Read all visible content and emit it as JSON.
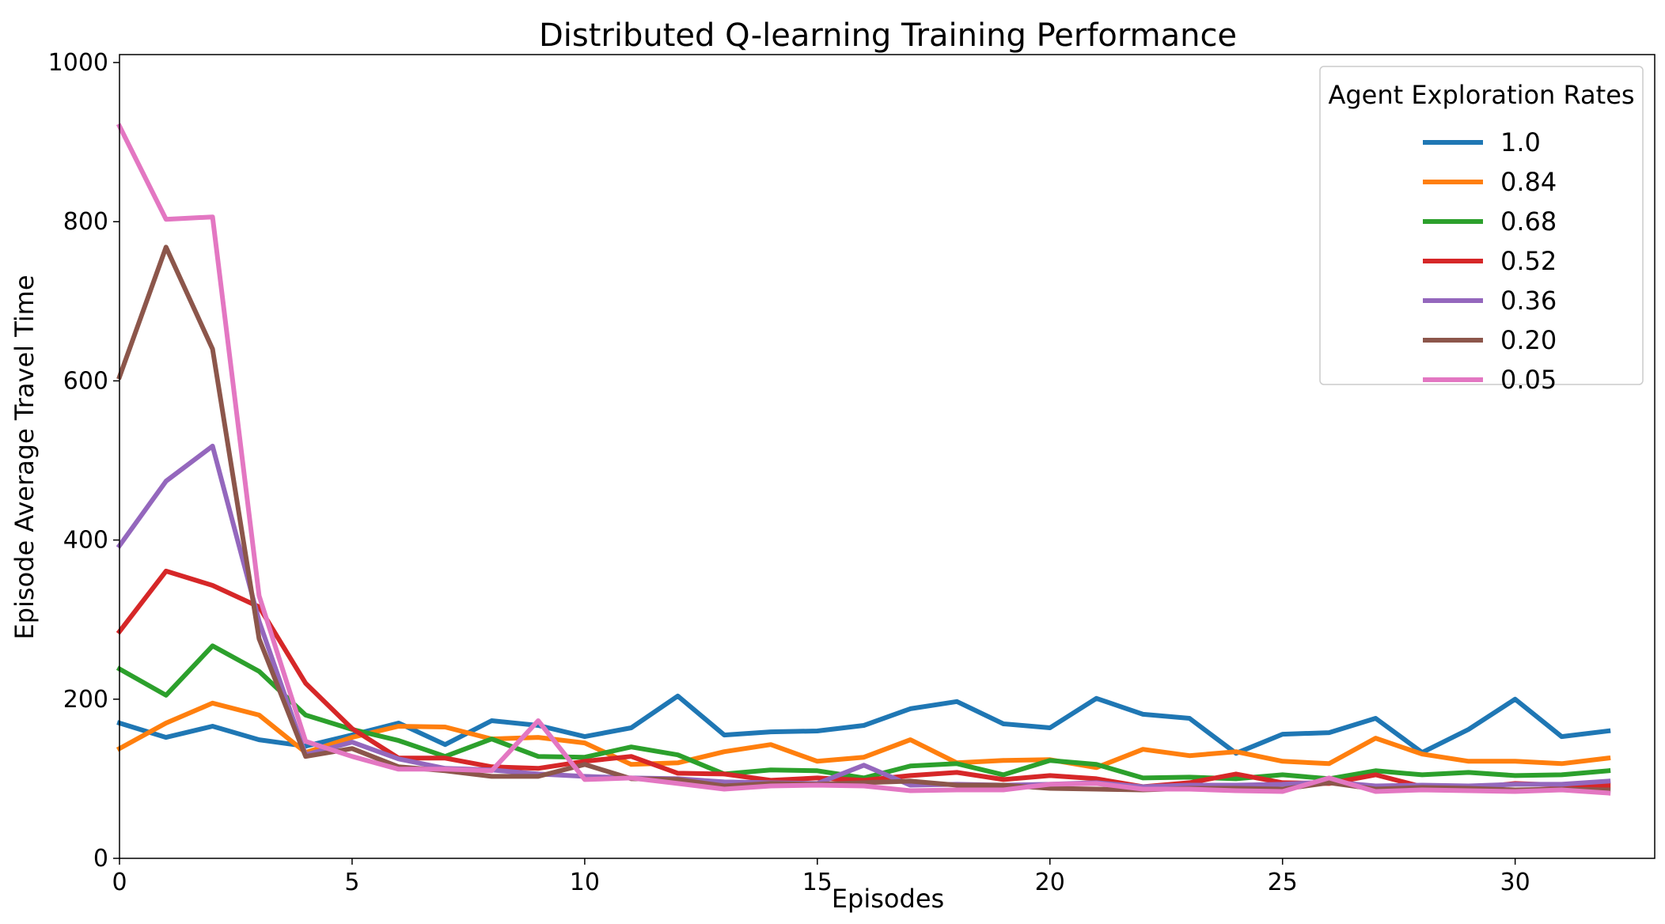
{
  "chart_data": {
    "type": "line",
    "title": "Distributed Q-learning Training Performance",
    "xlabel": "Episodes",
    "ylabel": "Episode Average Travel Time",
    "xlim": [
      0,
      33
    ],
    "ylim": [
      0,
      1010
    ],
    "xticks": [
      0,
      5,
      10,
      15,
      20,
      25,
      30
    ],
    "yticks": [
      0,
      200,
      400,
      600,
      800,
      1000
    ],
    "grid": false,
    "legend": {
      "title": "Agent Exploration Rates",
      "placement": "top-right"
    },
    "x": [
      0,
      1,
      2,
      3,
      4,
      5,
      6,
      7,
      8,
      9,
      10,
      11,
      12,
      13,
      14,
      15,
      16,
      17,
      18,
      19,
      20,
      21,
      22,
      23,
      24,
      25,
      26,
      27,
      28,
      29,
      30,
      31,
      32
    ],
    "series": [
      {
        "name": "1.0",
        "color": "#1f77b4",
        "values": [
          170,
          152,
          166,
          149,
          141,
          155,
          170,
          143,
          173,
          167,
          153,
          164,
          204,
          155,
          159,
          160,
          167,
          188,
          197,
          169,
          164,
          201,
          181,
          176,
          132,
          156,
          158,
          176,
          133,
          162,
          200,
          153,
          160
        ]
      },
      {
        "name": "0.84",
        "color": "#ff7f0e",
        "values": [
          138,
          170,
          195,
          180,
          133,
          152,
          166,
          165,
          150,
          152,
          145,
          118,
          120,
          134,
          143,
          122,
          127,
          149,
          120,
          123,
          124,
          114,
          137,
          129,
          134,
          122,
          119,
          151,
          131,
          122,
          122,
          119,
          126
        ]
      },
      {
        "name": "0.68",
        "color": "#2ca02c",
        "values": [
          238,
          205,
          267,
          235,
          180,
          162,
          148,
          128,
          150,
          128,
          127,
          140,
          130,
          106,
          111,
          110,
          101,
          116,
          119,
          105,
          123,
          118,
          101,
          102,
          100,
          105,
          100,
          110,
          105,
          108,
          104,
          105,
          110
        ]
      },
      {
        "name": "0.52",
        "color": "#d62728",
        "values": [
          285,
          361,
          343,
          316,
          220,
          163,
          126,
          126,
          115,
          113,
          122,
          128,
          107,
          106,
          98,
          101,
          98,
          104,
          108,
          99,
          104,
          100,
          90,
          95,
          106,
          95,
          94,
          105,
          90,
          88,
          94,
          92,
          92
        ]
      },
      {
        "name": "0.36",
        "color": "#9467bd",
        "values": [
          393,
          474,
          518,
          298,
          130,
          146,
          125,
          113,
          111,
          106,
          103,
          101,
          100,
          96,
          95,
          94,
          117,
          92,
          93,
          92,
          93,
          95,
          90,
          92,
          92,
          93,
          96,
          91,
          92,
          91,
          93,
          93,
          97
        ]
      },
      {
        "name": "0.20",
        "color": "#8c564b",
        "values": [
          605,
          768,
          640,
          276,
          128,
          138,
          115,
          110,
          103,
          103,
          118,
          100,
          99,
          91,
          94,
          93,
          95,
          97,
          92,
          92,
          88,
          87,
          86,
          88,
          88,
          87,
          95,
          87,
          89,
          88,
          86,
          87,
          86
        ]
      },
      {
        "name": "0.05",
        "color": "#e377c2",
        "values": [
          920,
          803,
          806,
          330,
          147,
          128,
          112,
          112,
          110,
          173,
          99,
          101,
          94,
          87,
          91,
          92,
          91,
          85,
          86,
          86,
          93,
          94,
          87,
          87,
          85,
          84,
          101,
          84,
          86,
          85,
          84,
          86,
          82
        ]
      }
    ]
  }
}
